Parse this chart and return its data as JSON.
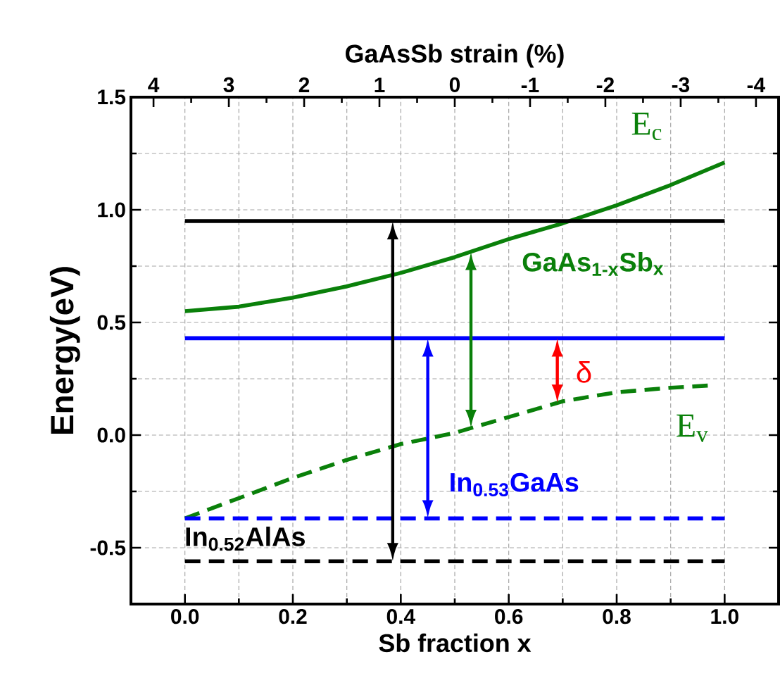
{
  "chart_data": {
    "type": "line",
    "xlabel": "Sb fraction x",
    "ylabel": "Energy(eV)",
    "x2label": "GaAsSb  strain (%)",
    "xlim": [
      -0.1,
      1.1
    ],
    "ylim": [
      -0.75,
      1.5
    ],
    "x2lim": [
      4.3,
      -4.3
    ],
    "xticks": [
      {
        "value": 0,
        "label": "0.0"
      },
      {
        "value": 0.1,
        "label": null
      },
      0.2,
      {
        "value": 0.3,
        "label": null
      },
      0.4,
      {
        "value": 0.5,
        "label": null
      },
      0.6,
      {
        "value": 0.7,
        "label": null
      },
      0.8,
      {
        "value": 0.9,
        "label": null
      },
      {
        "value": 1,
        "label": "1.0"
      }
    ],
    "yticks": [
      {
        "value": -0.75,
        "label": null
      },
      -0.5,
      {
        "value": -0.25,
        "label": null
      },
      {
        "value": 0,
        "label": "0.0"
      },
      {
        "value": 0.25,
        "label": null
      },
      0.5,
      {
        "value": 0.75,
        "label": null
      },
      {
        "value": 1,
        "label": "1.0"
      },
      {
        "value": 1.25,
        "label": null
      },
      1.5
    ],
    "x2ticks": [
      4,
      {
        "value": 3.5,
        "label": null
      },
      3,
      {
        "value": 2.5,
        "label": null
      },
      2,
      {
        "value": 1.5,
        "label": null
      },
      1,
      {
        "value": 0.5,
        "label": null
      },
      0,
      {
        "value": -0.5,
        "label": null
      },
      -1,
      {
        "value": -1.5,
        "label": null
      },
      -2,
      {
        "value": -2.5,
        "label": null
      },
      -3,
      {
        "value": -3.5,
        "label": null
      },
      -4
    ],
    "grid": true,
    "annotations": [
      "E$_{c}$",
      "E$_{v}$",
      "GaAs$_{1-x}$Sb$_{x}$",
      "δ",
      "In$_{0.53}$GaAs",
      "In$_{0.52}$AlAs"
    ],
    "series": [
      {
        "color": "#0a800a",
        "line_style": "solid",
        "x": [
          0,
          0.1,
          0.2,
          0.3,
          0.4,
          0.5,
          0.6,
          0.7,
          0.8,
          0.9,
          1.0
        ],
        "values": [
          0.55,
          0.57,
          0.61,
          0.66,
          0.72,
          0.79,
          0.87,
          0.94,
          1.02,
          1.11,
          1.21
        ]
      },
      {
        "color": "#0a800a",
        "line_style": "dashed",
        "x": [
          0,
          0.1,
          0.2,
          0.3,
          0.4,
          0.5,
          0.6,
          0.7,
          0.8,
          0.9,
          0.97
        ],
        "values": [
          -0.37,
          -0.28,
          -0.19,
          -0.11,
          -0.04,
          0.01,
          0.08,
          0.15,
          0.19,
          0.21,
          0.22
        ]
      },
      {
        "color": "#000000",
        "line_style": "solid",
        "x": [
          0,
          1
        ],
        "values": [
          0.95,
          0.95
        ]
      },
      {
        "color": "#000000",
        "line_style": "dashed",
        "x": [
          0,
          1
        ],
        "values": [
          -0.56,
          -0.56
        ]
      },
      {
        "color": "#0000ff",
        "line_style": "solid",
        "x": [
          0,
          1
        ],
        "values": [
          0.43,
          0.43
        ]
      },
      {
        "color": "#0000ff",
        "line_style": "dashed",
        "x": [
          0,
          1
        ],
        "values": [
          -0.37,
          -0.37
        ]
      }
    ]
  }
}
